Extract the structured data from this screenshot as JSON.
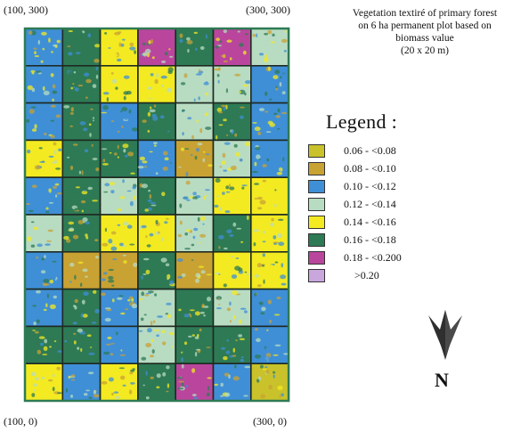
{
  "corners": {
    "top_left": "(100, 300)",
    "top_right": "(300, 300)",
    "bottom_left": "(100, 0)",
    "bottom_right": "(300, 0)"
  },
  "title_lines": [
    "Vegetation textiré of primary forest",
    "on 6 ha permanent plot based on",
    "biomass value",
    "(20 x 20 m)"
  ],
  "legend": {
    "heading": "Legend :",
    "items": [
      {
        "label": "0.06 - <0.08",
        "color": "#c9c22a"
      },
      {
        "label": "0.08 - <0.10",
        "color": "#c9a234"
      },
      {
        "label": "0.10 - <0.12",
        "color": "#3f8fd6"
      },
      {
        "label": "0.12 - <0.14",
        "color": "#b8dcc2"
      },
      {
        "label": "0.14 - <0.16",
        "color": "#f3ea22"
      },
      {
        "label": "0.16 - <0.18",
        "color": "#2e7a55"
      },
      {
        "label": "0.18 - <0.200",
        "color": "#b9469c"
      },
      {
        "label": ">0.20",
        "color": "#c9a7dd"
      }
    ]
  },
  "north": {
    "label": "N",
    "icon": "north-arrow-icon"
  },
  "grid": {
    "columns": 7,
    "rows": 10,
    "dominant_class_rows": [
      [
        2,
        5,
        4,
        6,
        5,
        6,
        3
      ],
      [
        2,
        5,
        4,
        4,
        3,
        3,
        2
      ],
      [
        2,
        5,
        2,
        5,
        3,
        5,
        2
      ],
      [
        4,
        5,
        5,
        2,
        1,
        3,
        2
      ],
      [
        2,
        5,
        3,
        5,
        3,
        4,
        4
      ],
      [
        3,
        5,
        4,
        4,
        3,
        5,
        4
      ],
      [
        2,
        1,
        1,
        5,
        1,
        4,
        4
      ],
      [
        2,
        5,
        2,
        3,
        5,
        3,
        2
      ],
      [
        5,
        5,
        2,
        3,
        5,
        5,
        2
      ],
      [
        4,
        2,
        4,
        5,
        6,
        2,
        0
      ]
    ]
  }
}
